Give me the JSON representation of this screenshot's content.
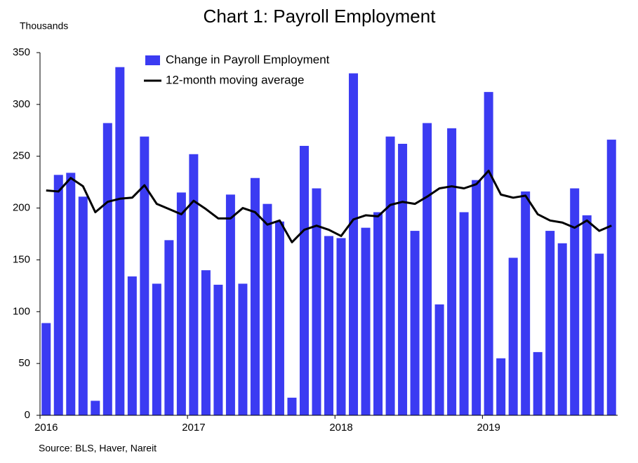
{
  "chart_data": {
    "type": "bar",
    "title": "Chart 1: Payroll Employment",
    "y_axis_label": "Thousands",
    "source": "Source: BLS, Haver, Nareit",
    "categories": [
      "2016",
      null,
      null,
      null,
      null,
      null,
      null,
      null,
      null,
      null,
      null,
      null,
      "2017",
      null,
      null,
      null,
      null,
      null,
      null,
      null,
      null,
      null,
      null,
      null,
      "2018",
      null,
      null,
      null,
      null,
      null,
      null,
      null,
      null,
      null,
      null,
      null,
      "2019",
      null,
      null,
      null,
      null,
      null,
      null,
      null,
      null,
      null,
      null
    ],
    "series": [
      {
        "name": "Change in Payroll Employment",
        "color": "#3b3bf2",
        "values": [
          89,
          232,
          234,
          211,
          14,
          282,
          336,
          134,
          269,
          127,
          169,
          215,
          252,
          140,
          126,
          213,
          127,
          229,
          204,
          187,
          17,
          260,
          219,
          173,
          171,
          330,
          181,
          196,
          269,
          262,
          178,
          282,
          107,
          277,
          196,
          227,
          312,
          55,
          152,
          216,
          61,
          178,
          166,
          219,
          193,
          156,
          266
        ]
      },
      {
        "name": "12-month moving average",
        "color": "#000000",
        "type": "line",
        "values": [
          217,
          216,
          229,
          221,
          196,
          206,
          209,
          210,
          222,
          204,
          199,
          194,
          207,
          199,
          190,
          190,
          200,
          196,
          184,
          188,
          167,
          179,
          183,
          179,
          173,
          189,
          193,
          192,
          203,
          206,
          204,
          211,
          219,
          221,
          219,
          223,
          236,
          213,
          210,
          212,
          194,
          188,
          186,
          181,
          188,
          178,
          183
        ]
      }
    ],
    "ylim": [
      0,
      350
    ],
    "yticks": [
      0,
      50,
      100,
      150,
      200,
      250,
      300,
      350
    ],
    "grid": false,
    "legend": "top"
  }
}
